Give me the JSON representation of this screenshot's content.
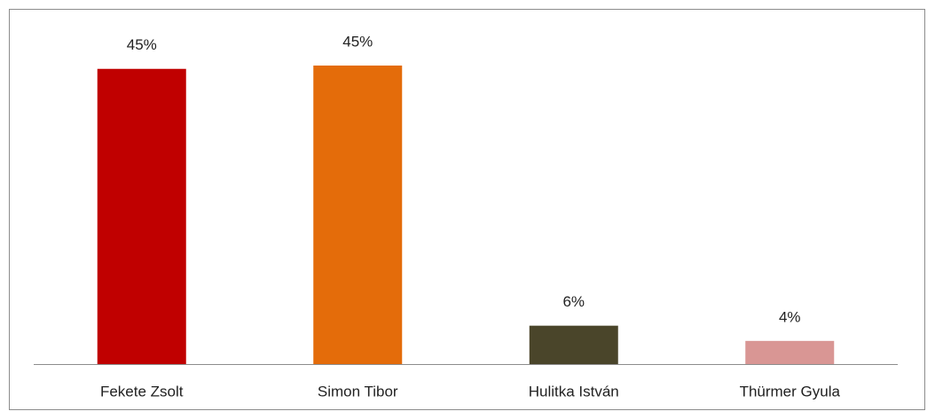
{
  "chart_data": {
    "type": "bar",
    "categories": [
      "Fekete Zsolt",
      "Simon Tibor",
      "Hulitka István",
      "Thürmer Gyula"
    ],
    "values": [
      44.6,
      45.1,
      5.8,
      3.5
    ],
    "value_labels": [
      "45%",
      "45%",
      "6%",
      "4%"
    ],
    "colors": [
      "#c00000",
      "#e46c0a",
      "#4a452a",
      "#d99694"
    ]
  }
}
